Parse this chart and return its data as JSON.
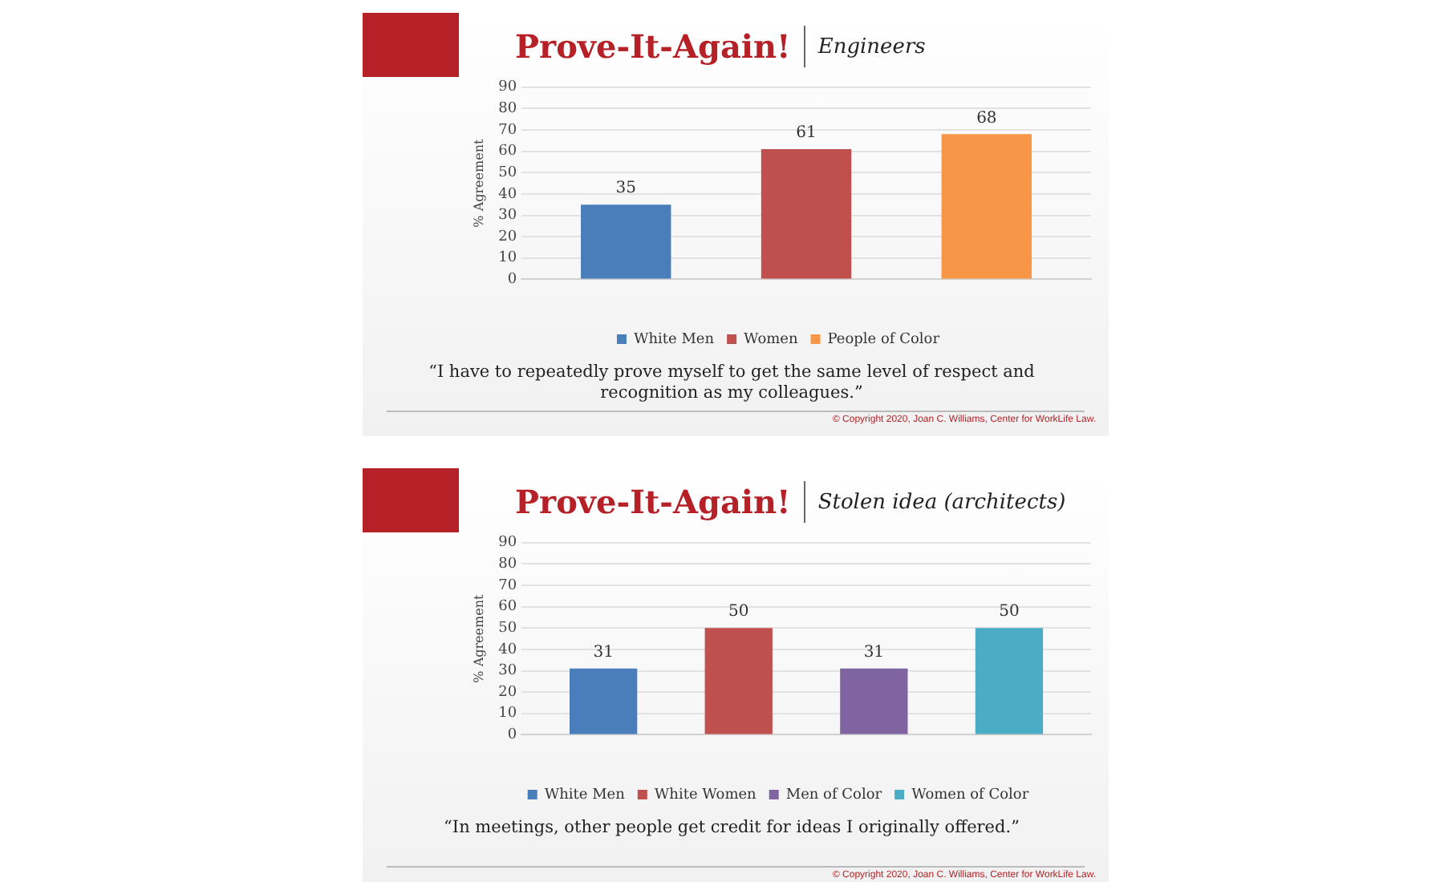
{
  "chart_data": [
    {
      "type": "bar",
      "title": "Prove-It-Again!",
      "subtitle": "Engineers",
      "ylabel": "% Agreement",
      "categories": [
        null
      ],
      "series": [
        {
          "name": "White Men",
          "color": "#4a7ebb",
          "values": [
            35
          ]
        },
        {
          "name": "Women",
          "color": "#c0504d",
          "values": [
            61
          ]
        },
        {
          "name": "People of Color",
          "color": "#f79646",
          "values": [
            68
          ]
        }
      ],
      "ylim": [
        0,
        90
      ],
      "yticks": [
        0,
        10,
        20,
        30,
        40,
        50,
        60,
        70,
        80,
        90
      ],
      "grid": "y",
      "legend": "bottom",
      "data_labels": true,
      "annotations": [
        "“I have to repeatedly prove myself to get the same level of respect and recognition as my colleagues.”",
        "© Copyright 2020, Joan C. Williams, Center for WorkLife Law."
      ]
    },
    {
      "type": "bar",
      "title": "Prove-It-Again!",
      "subtitle": "Stolen idea (architects)",
      "ylabel": "% Agreement",
      "categories": [
        null
      ],
      "series": [
        {
          "name": "White Men",
          "color": "#4a7ebb",
          "values": [
            31
          ]
        },
        {
          "name": "White Women",
          "color": "#c0504d",
          "values": [
            50
          ]
        },
        {
          "name": "Men of Color",
          "color": "#8064a2",
          "values": [
            31
          ]
        },
        {
          "name": "Women of Color",
          "color": "#4bacc6",
          "values": [
            50
          ]
        }
      ],
      "ylim": [
        0,
        90
      ],
      "yticks": [
        0,
        10,
        20,
        30,
        40,
        50,
        60,
        70,
        80,
        90
      ],
      "grid": "y",
      "legend": "bottom",
      "data_labels": true,
      "annotations": [
        "“In meetings, other people get credit for ideas I originally offered.”",
        "© Copyright 2020, Joan C. Williams, Center for WorkLife Law."
      ]
    }
  ]
}
